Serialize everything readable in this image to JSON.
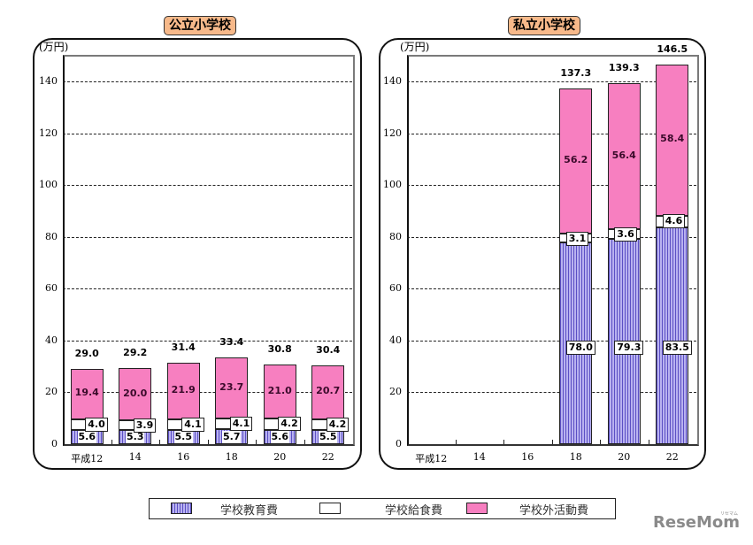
{
  "chart_data": [
    {
      "type": "bar",
      "stacked": true,
      "title": "公立小学校",
      "ylabel": "(万円)",
      "xlabel": "",
      "categories": [
        "平成12",
        "14",
        "16",
        "18",
        "20",
        "22"
      ],
      "ylim": [
        0,
        150
      ],
      "yticks": [
        0,
        20,
        40,
        60,
        80,
        100,
        120,
        140
      ],
      "grid": "dashed horizontal",
      "series": [
        {
          "name": "学校教育費",
          "values": [
            5.6,
            5.3,
            5.5,
            5.7,
            5.6,
            5.5
          ],
          "color": "#8b80e0"
        },
        {
          "name": "学校給食費",
          "values": [
            4.0,
            3.9,
            4.1,
            4.1,
            4.2,
            4.2
          ],
          "color": "#ffffff"
        },
        {
          "name": "学校外活動費",
          "values": [
            19.4,
            20.0,
            21.9,
            23.7,
            21.0,
            20.7
          ],
          "color": "#f77fc0"
        }
      ],
      "totals": [
        29.0,
        29.2,
        31.4,
        33.4,
        30.8,
        30.4
      ]
    },
    {
      "type": "bar",
      "stacked": true,
      "title": "私立小学校",
      "ylabel": "(万円)",
      "xlabel": "",
      "categories": [
        "平成12",
        "14",
        "16",
        "18",
        "20",
        "22"
      ],
      "ylim": [
        0,
        150
      ],
      "yticks": [
        0,
        20,
        40,
        60,
        80,
        100,
        120,
        140
      ],
      "grid": "dashed horizontal",
      "series": [
        {
          "name": "学校教育費",
          "values": [
            null,
            null,
            null,
            78.0,
            79.3,
            83.5
          ],
          "color": "#8b80e0"
        },
        {
          "name": "学校給食費",
          "values": [
            null,
            null,
            null,
            3.1,
            3.6,
            4.6
          ],
          "color": "#ffffff"
        },
        {
          "name": "学校外活動費",
          "values": [
            null,
            null,
            null,
            56.2,
            56.4,
            58.4
          ],
          "color": "#f77fc0"
        }
      ],
      "totals": [
        null,
        null,
        null,
        137.3,
        139.3,
        146.5
      ]
    }
  ],
  "charts": {
    "public": {
      "title": "公立小学校",
      "unit": "(万円)"
    },
    "private": {
      "title": "私立小学校",
      "unit": "(万円)"
    }
  },
  "legend": {
    "items": [
      {
        "label": "学校教育費"
      },
      {
        "label": "学校給食費"
      },
      {
        "label": "学校外活動費"
      }
    ]
  },
  "watermark": {
    "text": "ReseMom",
    "sub": "リセマム"
  }
}
